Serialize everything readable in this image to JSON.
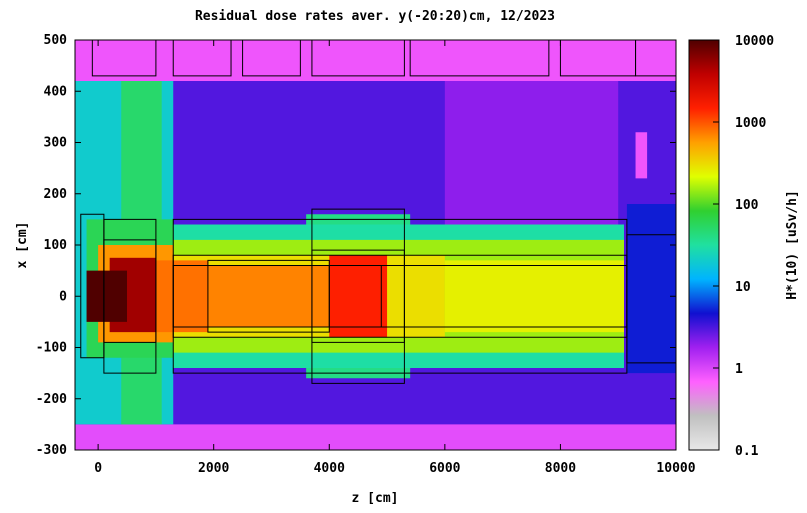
{
  "chart_data": {
    "type": "heatmap",
    "title": "Residual dose rates aver. y(-20:20)cm, 12/2023",
    "xlabel": "z [cm]",
    "ylabel": "x [cm]",
    "colorbar_label": "H*(10) [uSv/h]",
    "xlim": [
      -400,
      10000
    ],
    "ylim": [
      -300,
      500
    ],
    "x_ticks": [
      0,
      2000,
      4000,
      6000,
      8000,
      10000
    ],
    "y_ticks": [
      -300,
      -200,
      -100,
      0,
      100,
      200,
      300,
      400,
      500
    ],
    "colorbar_range": [
      0.1,
      10000
    ],
    "colorbar_scale": "log",
    "colorbar_ticks": [
      {
        "value": 10000,
        "label": "10000"
      },
      {
        "value": 1000,
        "label": "1000"
      },
      {
        "value": 100,
        "label": "100"
      },
      {
        "value": 10,
        "label": "10"
      },
      {
        "value": 1,
        "label": "1"
      },
      {
        "value": 0.1,
        "label": "0.1"
      }
    ],
    "colormap": [
      "#e8e8e8",
      "#c0c0c0",
      "#ff60ff",
      "#a020f0",
      "#1010d0",
      "#00b4ff",
      "#20e0a0",
      "#30d030",
      "#e0ff00",
      "#ffa000",
      "#ff2000",
      "#c00000",
      "#500000"
    ],
    "regions": [
      {
        "z": [
          -400,
          10000
        ],
        "x": [
          -300,
          500
        ],
        "value": 3
      },
      {
        "z": [
          -400,
          10000
        ],
        "x": [
          420,
          500
        ],
        "value": 0.8
      },
      {
        "z": [
          -400,
          10000
        ],
        "x": [
          -300,
          -250
        ],
        "value": 0.9
      },
      {
        "z": [
          -400,
          1300
        ],
        "x": [
          -250,
          420
        ],
        "value": 20
      },
      {
        "z": [
          400,
          1100
        ],
        "x": [
          -250,
          420
        ],
        "value": 50
      },
      {
        "z": [
          6000,
          9000
        ],
        "x": [
          0,
          420
        ],
        "value": 2
      },
      {
        "z": [
          3600,
          5400
        ],
        "x": [
          -160,
          160
        ],
        "value": 40
      },
      {
        "z": [
          1300,
          9100
        ],
        "x": [
          -140,
          140
        ],
        "value": 30
      },
      {
        "z": [
          1300,
          9100
        ],
        "x": [
          -110,
          110
        ],
        "value": 150
      },
      {
        "z": [
          1300,
          6000
        ],
        "x": [
          -80,
          80
        ],
        "value": 300
      },
      {
        "z": [
          6000,
          9100
        ],
        "x": [
          -70,
          70
        ],
        "value": 250
      },
      {
        "z": [
          -200,
          1300
        ],
        "x": [
          -120,
          150
        ],
        "value": 60
      },
      {
        "z": [
          0,
          1300
        ],
        "x": [
          -90,
          100
        ],
        "value": 600
      },
      {
        "z": [
          1000,
          1900
        ],
        "x": [
          -70,
          70
        ],
        "value": 800
      },
      {
        "z": [
          1900,
          4000
        ],
        "x": [
          -60,
          60
        ],
        "value": 700
      },
      {
        "z": [
          4000,
          5000
        ],
        "x": [
          -80,
          80
        ],
        "value": 1500
      },
      {
        "z": [
          200,
          1000
        ],
        "x": [
          -70,
          75
        ],
        "value": 5000
      },
      {
        "z": [
          -200,
          500
        ],
        "x": [
          -50,
          50
        ],
        "value": 10000
      },
      {
        "z": [
          9150,
          10000
        ],
        "x": [
          -150,
          180
        ],
        "value": 5
      },
      {
        "z": [
          9300,
          9500
        ],
        "x": [
          230,
          320
        ],
        "value": 0.8
      }
    ]
  }
}
